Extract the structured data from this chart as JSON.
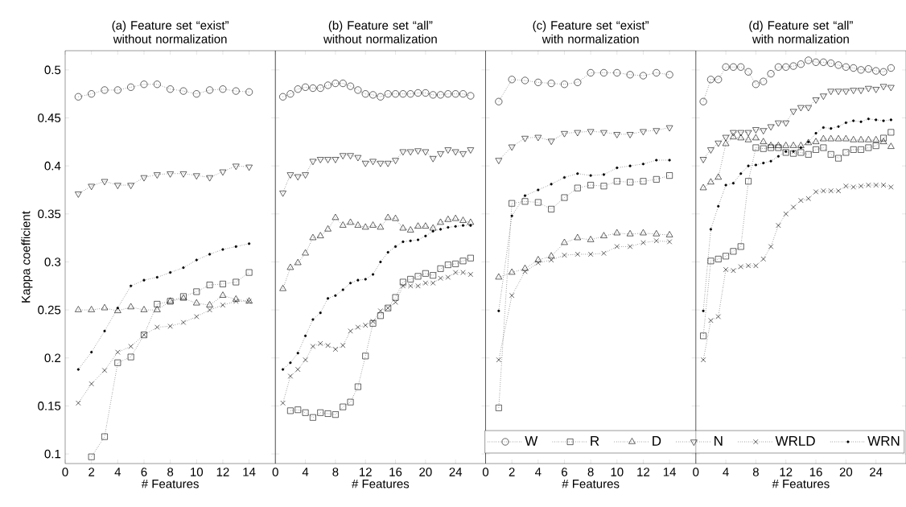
{
  "chart_data": [
    {
      "type": "line",
      "title": "(a) Feature set “exist” without normalization",
      "xlabel": "# Features",
      "ylabel": "Kappa coefficient",
      "x": [
        1,
        2,
        3,
        4,
        5,
        6,
        7,
        8,
        9,
        10,
        11,
        12,
        13,
        14
      ],
      "xlim": [
        0,
        16
      ],
      "xticks": [
        0,
        2,
        4,
        6,
        8,
        10,
        12,
        14
      ],
      "ylim": [
        0.09,
        0.52
      ],
      "yticks": [
        0.1,
        0.15,
        0.2,
        0.25,
        0.3,
        0.35,
        0.4,
        0.45,
        0.5
      ],
      "line_style": "dotted",
      "series": [
        {
          "color": "#000000",
          "marker": "circle",
          "values": [
            0.472,
            0.475,
            0.479,
            0.479,
            0.482,
            0.485,
            0.485,
            0.48,
            0.478,
            0.475,
            0.479,
            0.48,
            0.478,
            0.477
          ]
        },
        {
          "color": "#000000",
          "marker": "square",
          "values": [
            null,
            0.097,
            0.118,
            0.195,
            0.201,
            0.224,
            0.256,
            0.259,
            0.264,
            0.269,
            0.276,
            0.277,
            0.279,
            0.289
          ]
        },
        {
          "color": "#000000",
          "marker": "triangle",
          "values": [
            0.25,
            0.25,
            0.252,
            0.249,
            0.253,
            0.25,
            0.25,
            0.259,
            0.262,
            0.257,
            0.255,
            0.265,
            0.261,
            0.259
          ]
        },
        {
          "color": "#000000",
          "marker": "triangle_down",
          "values": [
            0.371,
            0.379,
            0.384,
            0.38,
            0.38,
            0.388,
            0.391,
            0.392,
            0.392,
            0.39,
            0.388,
            0.394,
            0.4,
            0.399
          ]
        },
        {
          "color": "#000000",
          "marker": "cross",
          "values": [
            0.153,
            0.173,
            0.187,
            0.206,
            0.212,
            0.224,
            0.232,
            0.233,
            0.237,
            0.243,
            0.25,
            0.255,
            0.259,
            0.259
          ]
        },
        {
          "color": "#000000",
          "marker": "dot",
          "values": [
            0.188,
            0.206,
            0.228,
            0.252,
            0.275,
            0.281,
            0.284,
            0.289,
            0.294,
            0.302,
            0.308,
            0.313,
            0.316,
            0.319
          ]
        }
      ]
    },
    {
      "type": "line",
      "title": "(b) Feature set “all” without normalization",
      "xlabel": "# Features",
      "x": [
        1,
        2,
        3,
        4,
        5,
        6,
        7,
        8,
        9,
        10,
        11,
        12,
        13,
        14,
        15,
        16,
        17,
        18,
        19,
        20,
        21,
        22,
        23,
        24,
        25,
        26
      ],
      "xlim": [
        0,
        28
      ],
      "xticks": [
        0,
        4,
        8,
        12,
        16,
        20,
        24
      ],
      "ylim": [
        0.09,
        0.52
      ],
      "yticks": [
        0.1,
        0.15,
        0.2,
        0.25,
        0.3,
        0.35,
        0.4,
        0.45,
        0.5
      ],
      "tick_labels": "x",
      "line_style": "dotted",
      "series": [
        {
          "color": "#000000",
          "marker": "circle",
          "values": [
            0.472,
            0.475,
            0.48,
            0.482,
            0.481,
            0.481,
            0.484,
            0.486,
            0.486,
            0.483,
            0.479,
            0.475,
            0.474,
            0.472,
            0.475,
            0.475,
            0.475,
            0.475,
            0.476,
            0.476,
            0.474,
            0.474,
            0.475,
            0.475,
            0.475,
            0.473
          ]
        },
        {
          "color": "#000000",
          "marker": "square",
          "values": [
            null,
            0.145,
            0.146,
            0.143,
            0.138,
            0.143,
            0.142,
            0.141,
            0.149,
            0.154,
            0.17,
            0.202,
            0.236,
            0.244,
            0.252,
            0.263,
            0.279,
            0.282,
            0.285,
            0.288,
            0.286,
            0.293,
            0.297,
            0.298,
            0.301,
            0.304
          ]
        },
        {
          "color": "#000000",
          "marker": "triangle",
          "values": [
            0.272,
            0.294,
            0.299,
            0.309,
            0.325,
            0.327,
            0.334,
            0.346,
            0.338,
            0.341,
            0.338,
            0.336,
            0.338,
            0.336,
            0.346,
            0.345,
            0.335,
            0.333,
            0.337,
            0.337,
            0.335,
            0.341,
            0.344,
            0.345,
            0.343,
            0.341
          ]
        },
        {
          "color": "#000000",
          "marker": "triangle_down",
          "values": [
            0.372,
            0.391,
            0.389,
            0.391,
            0.405,
            0.407,
            0.407,
            0.407,
            0.411,
            0.411,
            0.409,
            0.403,
            0.405,
            0.403,
            0.403,
            0.406,
            0.415,
            0.415,
            0.416,
            0.415,
            0.408,
            0.413,
            0.417,
            0.415,
            0.413,
            0.417
          ]
        },
        {
          "color": "#000000",
          "marker": "cross",
          "values": [
            0.153,
            0.181,
            0.188,
            0.198,
            0.212,
            0.215,
            0.213,
            0.209,
            0.213,
            0.228,
            0.232,
            0.234,
            0.238,
            0.249,
            0.252,
            0.258,
            0.275,
            0.275,
            0.275,
            0.278,
            0.278,
            0.283,
            0.284,
            0.289,
            0.289,
            0.287
          ]
        },
        {
          "color": "#000000",
          "marker": "dot",
          "values": [
            0.188,
            0.195,
            0.205,
            0.223,
            0.24,
            0.247,
            0.262,
            0.265,
            0.271,
            0.278,
            0.281,
            0.282,
            0.287,
            0.3,
            0.31,
            0.316,
            0.321,
            0.322,
            0.323,
            0.327,
            0.332,
            0.334,
            0.336,
            0.337,
            0.338,
            0.338
          ]
        }
      ]
    },
    {
      "type": "line",
      "title": "(c) Feature set “exist” with normalization",
      "xlabel": "# Features",
      "x": [
        1,
        2,
        3,
        4,
        5,
        6,
        7,
        8,
        9,
        10,
        11,
        12,
        13,
        14
      ],
      "xlim": [
        0,
        16
      ],
      "xticks": [
        0,
        2,
        4,
        6,
        8,
        10,
        12,
        14
      ],
      "ylim": [
        0.09,
        0.52
      ],
      "yticks": [
        0.1,
        0.15,
        0.2,
        0.25,
        0.3,
        0.35,
        0.4,
        0.45,
        0.5
      ],
      "tick_labels": "x",
      "line_style": "dotted",
      "legend": "bottom right",
      "series": [
        {
          "name": "W",
          "color": "#000000",
          "marker": "circle",
          "values": [
            0.467,
            0.49,
            0.489,
            0.487,
            0.486,
            0.485,
            0.487,
            0.497,
            0.497,
            0.497,
            0.495,
            0.494,
            0.497,
            0.495
          ]
        },
        {
          "name": "R",
          "color": "#000000",
          "marker": "square",
          "values": [
            0.148,
            0.361,
            0.363,
            0.362,
            0.355,
            0.367,
            0.377,
            0.38,
            0.379,
            0.384,
            0.383,
            0.384,
            0.386,
            0.39
          ]
        },
        {
          "name": "D",
          "color": "#000000",
          "marker": "triangle",
          "values": [
            0.284,
            0.289,
            0.293,
            0.302,
            0.306,
            0.32,
            0.325,
            0.323,
            0.327,
            0.33,
            0.329,
            0.33,
            0.329,
            0.328
          ]
        },
        {
          "name": "N",
          "color": "#000000",
          "marker": "triangle_down",
          "values": [
            0.406,
            0.42,
            0.429,
            0.43,
            0.426,
            0.434,
            0.435,
            0.436,
            0.435,
            0.433,
            0.433,
            0.436,
            0.437,
            0.44
          ]
        },
        {
          "name": "WRLD",
          "color": "#000000",
          "marker": "cross",
          "values": [
            0.198,
            0.265,
            0.29,
            0.299,
            0.302,
            0.307,
            0.308,
            0.308,
            0.309,
            0.316,
            0.316,
            0.32,
            0.322,
            0.321
          ]
        },
        {
          "name": "WRN",
          "color": "#000000",
          "marker": "dot",
          "values": [
            0.249,
            0.348,
            0.369,
            0.375,
            0.381,
            0.388,
            0.392,
            0.39,
            0.391,
            0.398,
            0.4,
            0.402,
            0.406,
            0.406
          ]
        }
      ]
    },
    {
      "type": "line",
      "title": "(d) Feature set “all” with normalization",
      "xlabel": "# Features",
      "x": [
        1,
        2,
        3,
        4,
        5,
        6,
        7,
        8,
        9,
        10,
        11,
        12,
        13,
        14,
        15,
        16,
        17,
        18,
        19,
        20,
        21,
        22,
        23,
        24,
        25,
        26
      ],
      "xlim": [
        0,
        28
      ],
      "xticks": [
        0,
        4,
        8,
        12,
        16,
        20,
        24
      ],
      "ylim": [
        0.09,
        0.52
      ],
      "yticks": [
        0.1,
        0.15,
        0.2,
        0.25,
        0.3,
        0.35,
        0.4,
        0.45,
        0.5
      ],
      "tick_labels": "x",
      "line_style": "dotted",
      "series": [
        {
          "color": "#000000",
          "marker": "circle",
          "values": [
            0.467,
            0.49,
            0.49,
            0.503,
            0.503,
            0.503,
            0.498,
            0.485,
            0.488,
            0.496,
            0.503,
            0.503,
            0.504,
            0.506,
            0.51,
            0.508,
            0.508,
            0.507,
            0.505,
            0.503,
            0.502,
            0.5,
            0.501,
            0.499,
            0.498,
            0.502
          ]
        },
        {
          "color": "#000000",
          "marker": "square",
          "values": [
            0.223,
            0.301,
            0.303,
            0.306,
            0.311,
            0.316,
            0.384,
            0.419,
            0.418,
            0.419,
            0.419,
            0.414,
            0.413,
            0.414,
            0.412,
            0.417,
            0.419,
            0.412,
            0.408,
            0.414,
            0.417,
            0.417,
            0.419,
            0.421,
            0.429,
            0.435
          ]
        },
        {
          "color": "#000000",
          "marker": "triangle",
          "values": [
            0.377,
            0.383,
            0.388,
            0.423,
            0.43,
            0.429,
            0.427,
            0.429,
            0.425,
            0.421,
            0.421,
            0.421,
            0.421,
            0.421,
            0.424,
            0.425,
            0.428,
            0.428,
            0.428,
            0.428,
            0.427,
            0.427,
            0.427,
            0.427,
            0.425,
            0.42
          ]
        },
        {
          "color": "#000000",
          "marker": "triangle_down",
          "values": [
            0.407,
            0.417,
            0.424,
            0.43,
            0.435,
            0.435,
            0.435,
            0.438,
            0.437,
            0.441,
            0.445,
            0.445,
            0.457,
            0.461,
            0.461,
            0.469,
            0.473,
            0.478,
            0.478,
            0.478,
            0.479,
            0.479,
            0.481,
            0.48,
            0.483,
            0.482
          ]
        },
        {
          "color": "#000000",
          "marker": "cross",
          "values": [
            0.198,
            0.239,
            0.243,
            0.292,
            0.291,
            0.295,
            0.296,
            0.296,
            0.303,
            0.316,
            0.338,
            0.35,
            0.357,
            0.364,
            0.366,
            0.373,
            0.374,
            0.374,
            0.374,
            0.379,
            0.378,
            0.379,
            0.38,
            0.38,
            0.38,
            0.378
          ]
        },
        {
          "color": "#000000",
          "marker": "dot",
          "values": [
            0.249,
            0.334,
            0.358,
            0.38,
            0.382,
            0.392,
            0.4,
            0.401,
            0.403,
            0.405,
            0.41,
            0.415,
            0.415,
            0.419,
            0.425,
            0.434,
            0.44,
            0.439,
            0.441,
            0.445,
            0.447,
            0.446,
            0.449,
            0.448,
            0.447,
            0.448
          ]
        }
      ]
    }
  ]
}
